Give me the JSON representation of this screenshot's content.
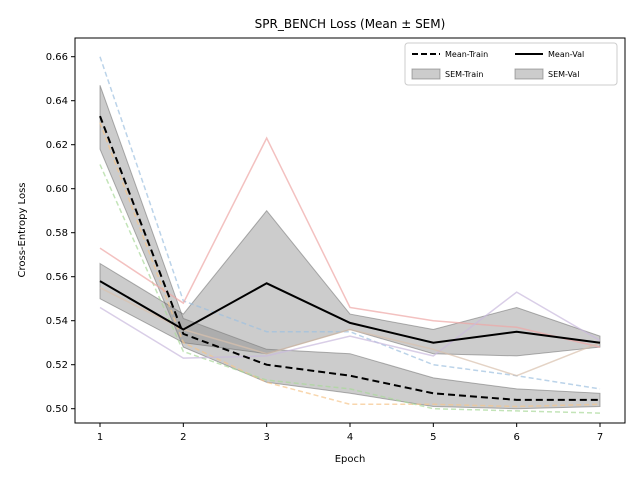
{
  "chart_data": {
    "type": "line",
    "title": "SPR_BENCH Loss (Mean ± SEM)",
    "xlabel": "Epoch",
    "ylabel": "Cross-Entropy Loss",
    "x": [
      1,
      2,
      3,
      4,
      5,
      6,
      7
    ],
    "xlim": [
      0.7,
      7.3
    ],
    "ylim": [
      0.4935,
      0.6685
    ],
    "xticks": [
      "1",
      "2",
      "3",
      "4",
      "5",
      "6",
      "7"
    ],
    "yticks": [
      "0.50",
      "0.52",
      "0.54",
      "0.56",
      "0.58",
      "0.60",
      "0.62",
      "0.64",
      "0.66"
    ],
    "ytick_values": [
      0.5,
      0.52,
      0.54,
      0.56,
      0.58,
      0.6,
      0.62,
      0.64,
      0.66
    ],
    "legend_position": "top-right",
    "grid": false,
    "mean_series": [
      {
        "name": "Mean-Train",
        "style": "dashed",
        "color": "#000000",
        "values": [
          0.633,
          0.534,
          0.52,
          0.515,
          0.507,
          0.504,
          0.504
        ]
      },
      {
        "name": "Mean-Val",
        "style": "solid",
        "color": "#000000",
        "values": [
          0.558,
          0.536,
          0.557,
          0.539,
          0.53,
          0.535,
          0.53
        ]
      }
    ],
    "sem_bands": [
      {
        "name": "SEM-Train",
        "upper": [
          0.647,
          0.541,
          0.527,
          0.525,
          0.514,
          0.509,
          0.507
        ],
        "lower": [
          0.618,
          0.528,
          0.512,
          0.507,
          0.501,
          0.5,
          0.501
        ]
      },
      {
        "name": "SEM-Val",
        "upper": [
          0.566,
          0.543,
          0.59,
          0.543,
          0.536,
          0.546,
          0.533
        ],
        "lower": [
          0.55,
          0.53,
          0.525,
          0.536,
          0.525,
          0.524,
          0.528
        ]
      }
    ],
    "individual_runs": [
      {
        "split": "train",
        "color": "#9ec1e0",
        "values": [
          0.66,
          0.549,
          0.535,
          0.535,
          0.52,
          0.515,
          0.509
        ]
      },
      {
        "split": "train",
        "color": "#f5c48a",
        "values": [
          0.63,
          0.53,
          0.512,
          0.502,
          0.502,
          0.501,
          0.502
        ]
      },
      {
        "split": "train",
        "color": "#a9d99a",
        "values": [
          0.611,
          0.526,
          0.513,
          0.509,
          0.5,
          0.499,
          0.498
        ]
      },
      {
        "split": "val",
        "color": "#eea7a5",
        "values": [
          0.573,
          0.548,
          0.623,
          0.546,
          0.54,
          0.537,
          0.528
        ]
      },
      {
        "split": "val",
        "color": "#c9b9dd",
        "values": [
          0.546,
          0.523,
          0.524,
          0.533,
          0.524,
          0.553,
          0.531
        ]
      },
      {
        "split": "val",
        "color": "#d8c0ad",
        "values": [
          0.555,
          0.536,
          0.525,
          0.536,
          0.527,
          0.515,
          0.53
        ]
      }
    ]
  }
}
